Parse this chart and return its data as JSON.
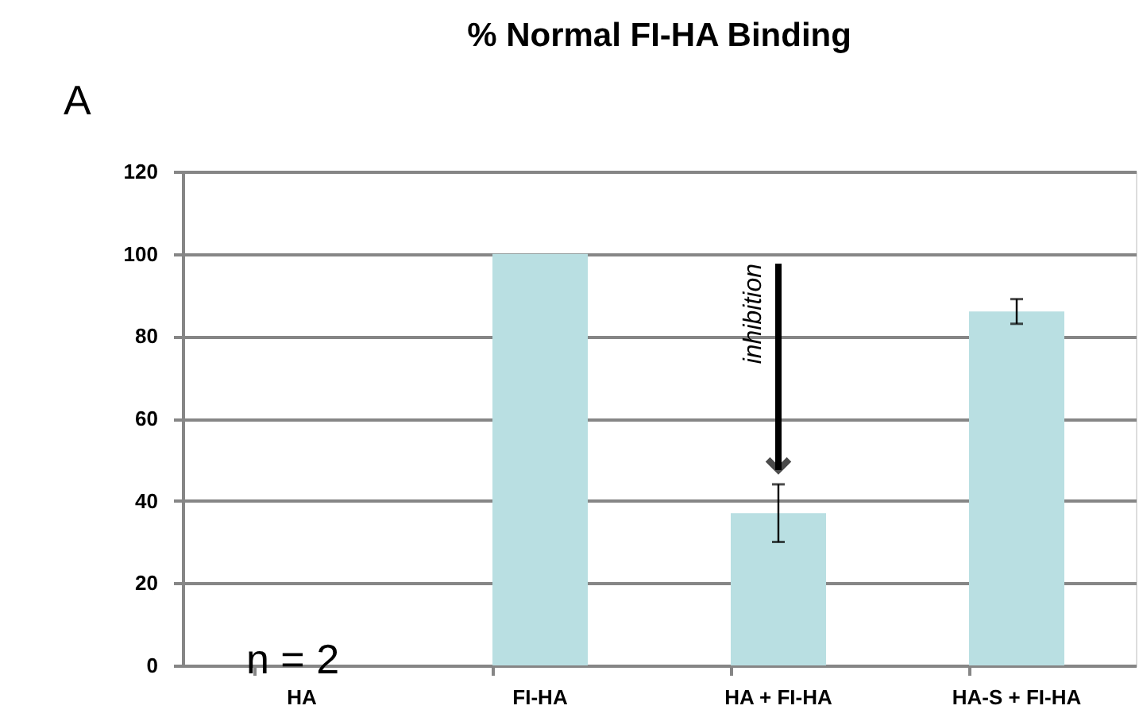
{
  "chart_data": {
    "type": "bar",
    "title": "% Normal FI-HA Binding",
    "categories": [
      "HA",
      "FI-HA",
      "HA + FI-HA",
      "HA-S + FI-HA"
    ],
    "values": [
      0,
      100,
      37,
      86
    ],
    "errors": [
      null,
      null,
      7,
      3
    ],
    "color": "#b9dfe2",
    "ylim": [
      0,
      120
    ],
    "yticks": [
      0,
      20,
      40,
      60,
      80,
      100,
      120
    ],
    "grid": "y",
    "annotations": [
      "A",
      "n = 2",
      "inhibition"
    ]
  }
}
